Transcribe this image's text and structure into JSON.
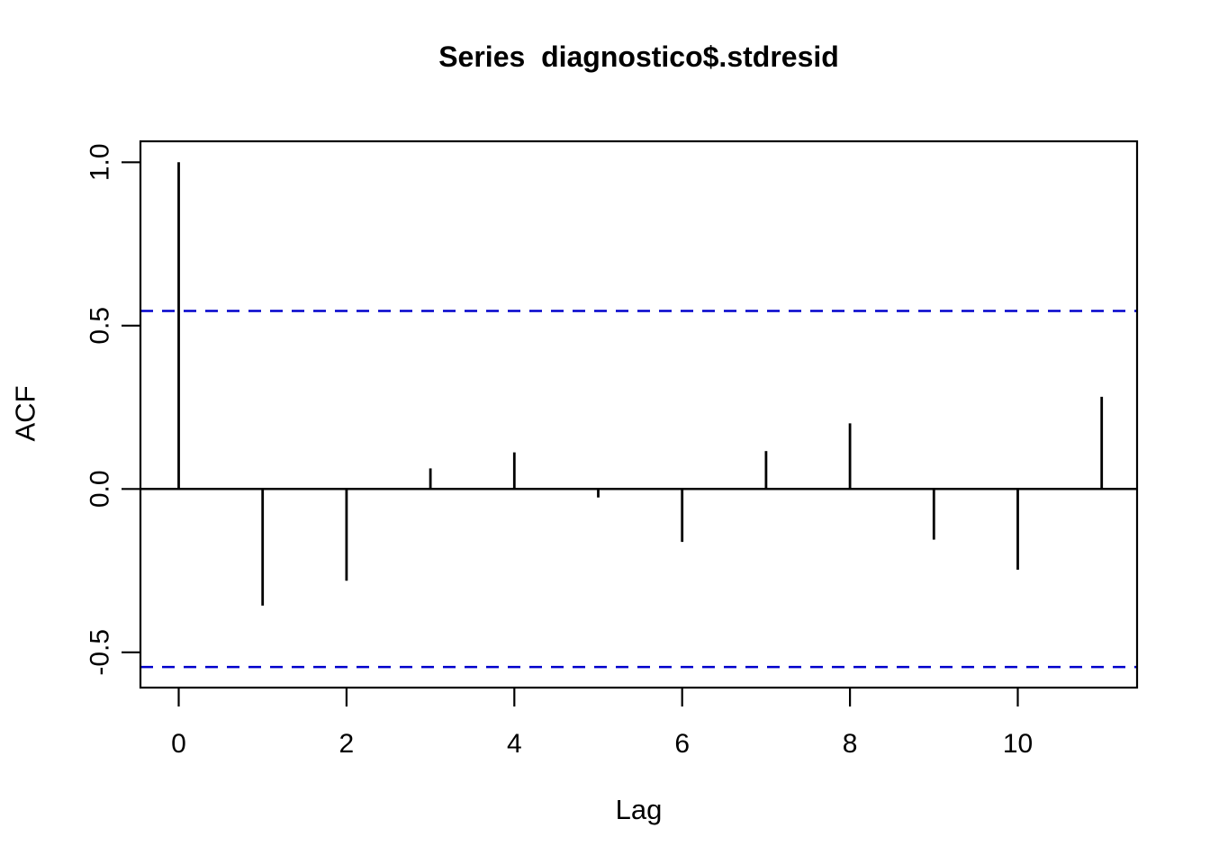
{
  "page": {
    "background": "#ffffff"
  },
  "chart_data": {
    "type": "bar",
    "variant": "acf-stem-plot",
    "title": "Series  diagnostico$.stdresid",
    "xlabel": "Lag",
    "ylabel": "ACF",
    "x": [
      0,
      1,
      2,
      3,
      4,
      5,
      6,
      7,
      8,
      9,
      10,
      11
    ],
    "values": [
      1.0,
      -0.357,
      -0.281,
      0.063,
      0.112,
      -0.026,
      -0.162,
      0.116,
      0.201,
      -0.155,
      -0.247,
      0.282
    ],
    "conf_bounds": [
      0.545,
      -0.545
    ],
    "conf_line_style": "dashed",
    "xticks": {
      "values": [
        0,
        2,
        4,
        6,
        8,
        10
      ],
      "labels": [
        "0",
        "2",
        "4",
        "6",
        "8",
        "10"
      ]
    },
    "yticks": {
      "values": [
        1.0,
        0.5,
        0.0,
        -0.5
      ],
      "labels": [
        "1.0",
        "0.5",
        "0.0",
        "-0.5"
      ]
    },
    "xlim": [
      -0.46,
      11.42
    ],
    "ylim": [
      -0.61,
      1.06
    ],
    "grid": false,
    "legend": null,
    "colors": {
      "stem": "#000000",
      "conf_line": "#0000CC",
      "axis": "#000000",
      "background": "#ffffff"
    }
  }
}
